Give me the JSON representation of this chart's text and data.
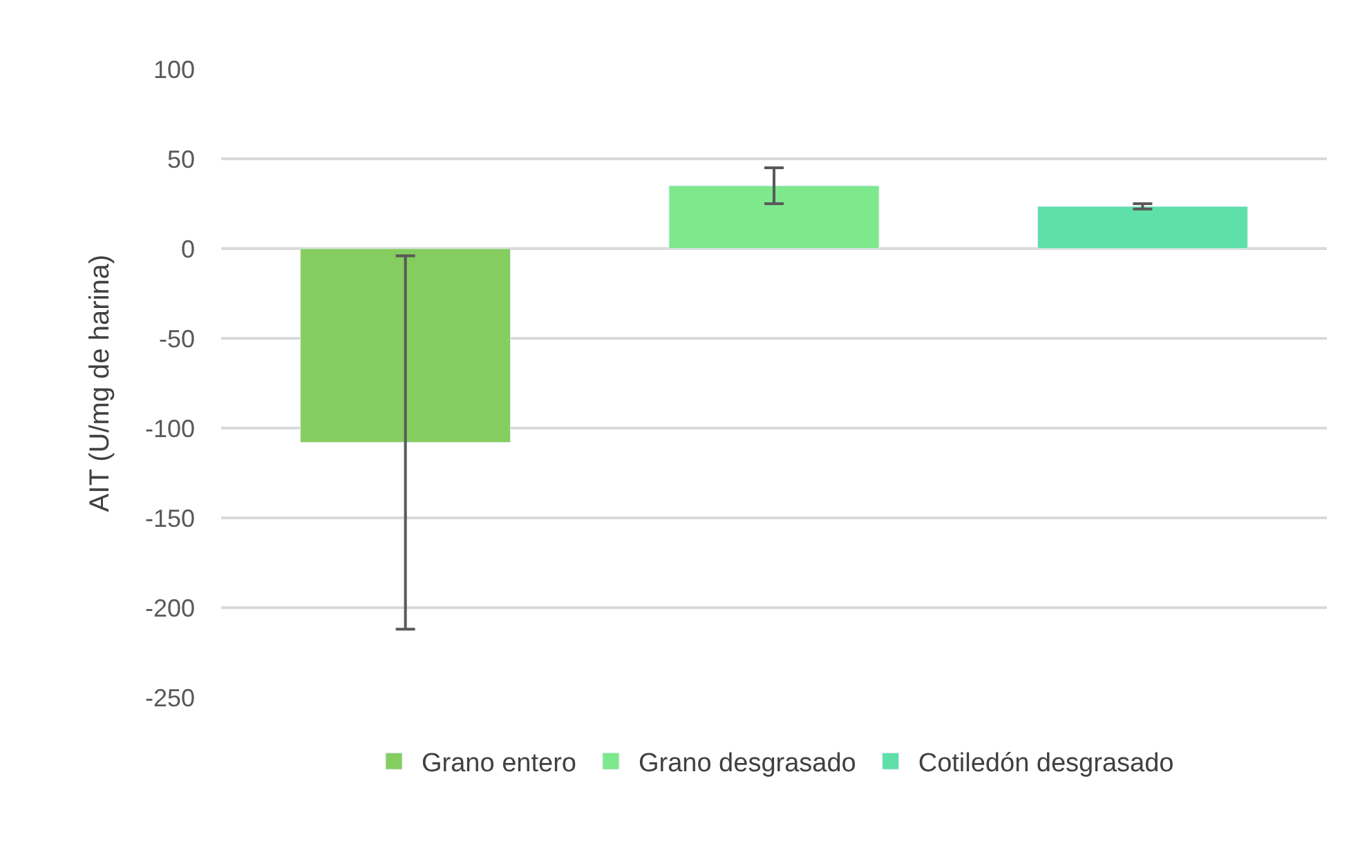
{
  "chart_data": {
    "type": "bar",
    "ylabel": "AIT (U/mg de harina)",
    "categories": [
      null,
      null,
      null
    ],
    "series": [
      {
        "name": "Grano entero",
        "color": "#86cd5f",
        "values": [
          -108,
          null,
          null
        ],
        "errors": [
          104,
          null,
          null
        ]
      },
      {
        "name": "Grano desgrasado",
        "color": "#7de88c",
        "values": [
          null,
          35,
          null
        ],
        "errors": [
          null,
          10,
          null
        ]
      },
      {
        "name": "Cotiledón desgrasado",
        "color": "#5ee0a8",
        "values": [
          null,
          null,
          23.5
        ],
        "errors": [
          null,
          null,
          1.5
        ]
      }
    ],
    "ylim": [
      -250,
      100
    ],
    "yticks": [
      -250,
      -200,
      -150,
      -100,
      -50,
      0,
      50,
      100
    ],
    "grid": "y",
    "legend": "bottom",
    "tick_labels": "y"
  }
}
